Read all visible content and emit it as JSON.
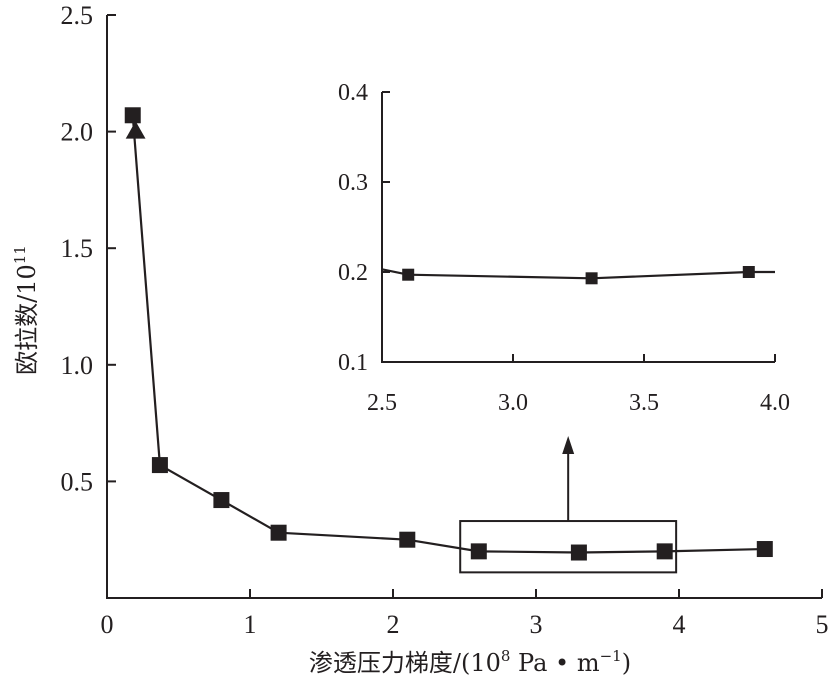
{
  "chart_data": [
    {
      "type": "line",
      "title": "",
      "xlabel": "渗透压力梯度/(10⁸ Pa • m⁻¹)",
      "xlabel_parts": {
        "main": "渗透压力梯度/(10",
        "sup1": "8",
        "unit": " Pa • m",
        "sup2": "−1",
        "close": ")"
      },
      "ylabel": "欧拉数/10¹¹",
      "ylabel_parts": {
        "main": "欧拉数/10",
        "sup": "11"
      },
      "xlim": [
        0,
        5
      ],
      "ylim": [
        0,
        2.5
      ],
      "xticks": [
        "0",
        "1",
        "2",
        "3",
        "4",
        "5"
      ],
      "yticks": [
        "0.5",
        "1.0",
        "1.5",
        "2.0",
        "2.5"
      ],
      "series": [
        {
          "marker": "square",
          "x": [
            0.18,
            0.37,
            0.8,
            1.2,
            2.1,
            2.6,
            3.3,
            3.9,
            4.6
          ],
          "y": [
            2.07,
            0.57,
            0.42,
            0.28,
            0.25,
            0.2,
            0.195,
            0.2,
            0.21
          ]
        },
        {
          "marker": "triangle",
          "x": [
            0.2
          ],
          "y": [
            2.0
          ]
        }
      ],
      "highlight_box": {
        "x": [
          2.47,
          3.98
        ],
        "y": [
          0.11,
          0.33
        ]
      },
      "grid": false
    },
    {
      "type": "line",
      "role": "inset",
      "xlim": [
        2.5,
        4.0
      ],
      "ylim": [
        0.1,
        0.4
      ],
      "xticks": [
        "2.5",
        "3.0",
        "3.5",
        "4.0"
      ],
      "yticks": [
        "0.1",
        "0.2",
        "0.3",
        "0.4"
      ],
      "series": [
        {
          "marker": "square",
          "x": [
            2.6,
            3.3,
            3.9
          ],
          "y": [
            0.197,
            0.193,
            0.2
          ]
        }
      ],
      "grid": false
    }
  ],
  "colors": {
    "ink": "#231f20"
  }
}
